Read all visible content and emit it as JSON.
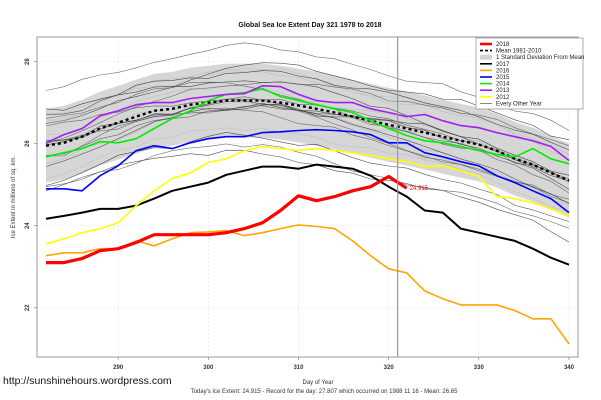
{
  "chart_data": {
    "type": "line",
    "title": "Global Sea Ice Extent Day 321 1978 to 2018",
    "xlabel": "Day of Year",
    "ylabel": "Ice Extent in millions of sq. km.",
    "xlim": [
      281,
      341
    ],
    "ylim": [
      20.8,
      28.6
    ],
    "xticks": [
      290,
      300,
      310,
      320,
      330,
      340
    ],
    "yticks": [
      22,
      24,
      26,
      28
    ],
    "grid": true,
    "legend_position": "top-right",
    "marker_day": 321,
    "current_value_label": "24.915",
    "footer": "Today's Ice Extent: 24.915  - Record for the day: 27.807 which occurred on 1988 11 16  - Mean: 26.65",
    "watermark": "http://sunshinehours.wordpress.com",
    "x": [
      282,
      284,
      286,
      288,
      290,
      292,
      294,
      296,
      298,
      300,
      302,
      304,
      306,
      308,
      310,
      312,
      314,
      316,
      318,
      320,
      322,
      324,
      326,
      328,
      330,
      332,
      334,
      336,
      338,
      340
    ],
    "sd_band": 0.9,
    "legend": [
      {
        "name": "2018",
        "color": "#ff0000",
        "style": "thick"
      },
      {
        "name": "Mean 1981-2010",
        "color": "#000000",
        "style": "dashed"
      },
      {
        "name": "1 Standard Deviation From Mean",
        "color": "#d3d3d3",
        "style": "band"
      },
      {
        "name": "2017",
        "color": "#000000",
        "style": "solid"
      },
      {
        "name": "2016",
        "color": "#ffa500",
        "style": "solid"
      },
      {
        "name": "2015",
        "color": "#0000ff",
        "style": "solid"
      },
      {
        "name": "2014",
        "color": "#00ee00",
        "style": "solid"
      },
      {
        "name": "2013",
        "color": "#a020f0",
        "style": "solid"
      },
      {
        "name": "2012",
        "color": "#ffff00",
        "style": "solid"
      },
      {
        "name": "Every Other Year",
        "color": "#555555",
        "style": "thin"
      }
    ],
    "series": [
      {
        "name": "Mean 1981-2010",
        "color": "#000000",
        "dash": true,
        "values": [
          25.95,
          26.02,
          26.17,
          26.37,
          26.51,
          26.66,
          26.8,
          26.85,
          26.95,
          27.0,
          27.05,
          27.05,
          27.05,
          27.0,
          26.93,
          26.85,
          26.76,
          26.66,
          26.56,
          26.46,
          26.37,
          26.27,
          26.17,
          26.07,
          25.98,
          25.83,
          25.63,
          25.49,
          25.29,
          25.1
        ]
      },
      {
        "name": "2017",
        "color": "#000000",
        "width": 2,
        "values": [
          24.17,
          24.24,
          24.32,
          24.41,
          24.41,
          24.49,
          24.66,
          24.85,
          24.95,
          25.05,
          25.24,
          25.34,
          25.44,
          25.44,
          25.39,
          25.49,
          25.44,
          25.39,
          25.22,
          24.95,
          24.71,
          24.37,
          24.32,
          23.93,
          23.83,
          23.73,
          23.63,
          23.44,
          23.22,
          23.05
        ]
      },
      {
        "name": "2016",
        "color": "#ffa500",
        "width": 1.6,
        "values": [
          23.27,
          23.34,
          23.34,
          23.44,
          23.44,
          23.63,
          23.51,
          23.68,
          23.83,
          23.85,
          23.88,
          23.76,
          23.83,
          23.93,
          24.02,
          23.98,
          23.93,
          23.63,
          23.27,
          22.95,
          22.85,
          22.41,
          22.22,
          22.07,
          22.07,
          22.07,
          21.93,
          21.73,
          21.73,
          21.12
        ]
      },
      {
        "name": "2012",
        "color": "#ffff00",
        "width": 1.6,
        "values": [
          23.56,
          23.68,
          23.83,
          23.93,
          24.07,
          24.49,
          24.85,
          25.15,
          25.29,
          25.54,
          25.63,
          25.83,
          25.93,
          25.88,
          25.83,
          25.88,
          25.83,
          25.78,
          25.71,
          25.63,
          25.56,
          25.44,
          25.46,
          25.34,
          25.2,
          24.71,
          24.66,
          24.56,
          24.41,
          24.24
        ]
      },
      {
        "name": "2015",
        "color": "#0000ff",
        "width": 1.6,
        "values": [
          24.9,
          24.9,
          24.85,
          25.22,
          25.46,
          25.83,
          25.95,
          25.88,
          26.02,
          26.12,
          26.17,
          26.17,
          26.27,
          26.29,
          26.32,
          26.34,
          26.32,
          26.29,
          26.22,
          26.02,
          26.02,
          25.78,
          25.68,
          25.56,
          25.46,
          25.22,
          25.05,
          24.85,
          24.66,
          24.32
        ]
      },
      {
        "name": "2014",
        "color": "#00ee00",
        "width": 1.6,
        "values": [
          25.68,
          25.78,
          25.88,
          26.05,
          26.02,
          26.12,
          26.37,
          26.61,
          26.8,
          27.05,
          27.2,
          27.24,
          27.34,
          27.15,
          27.05,
          26.95,
          26.85,
          26.76,
          26.56,
          26.37,
          26.2,
          26.07,
          26.02,
          25.93,
          25.83,
          25.73,
          25.68,
          25.88,
          25.63,
          25.51
        ]
      },
      {
        "name": "2013",
        "color": "#a020f0",
        "width": 1.6,
        "values": [
          26.02,
          26.22,
          26.37,
          26.68,
          26.8,
          26.95,
          27.0,
          27.0,
          27.1,
          27.15,
          27.2,
          27.22,
          27.41,
          27.39,
          27.2,
          27.05,
          27.0,
          27.0,
          26.85,
          26.76,
          26.66,
          26.71,
          26.56,
          26.44,
          26.39,
          26.27,
          26.17,
          26.07,
          25.93,
          25.59
        ]
      },
      {
        "name": "2018",
        "color": "#ff0000",
        "width": 3.2,
        "values": [
          23.1,
          23.1,
          23.2,
          23.39,
          23.44,
          23.59,
          23.78,
          23.78,
          23.78,
          23.78,
          23.83,
          23.93,
          24.07,
          24.37,
          24.73,
          24.61,
          24.71,
          24.85,
          24.95,
          25.2,
          24.915
        ]
      }
    ]
  }
}
